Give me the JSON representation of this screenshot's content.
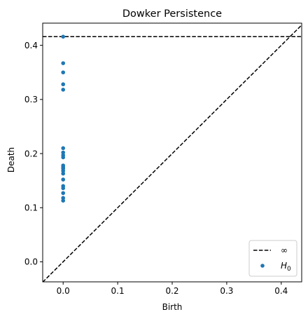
{
  "chart_data": {
    "type": "scatter",
    "title": "Dowker Persistence",
    "xlabel": "Birth",
    "ylabel": "Death",
    "xlim": [
      -0.0375,
      0.4375
    ],
    "ylim": [
      -0.037,
      0.441
    ],
    "x_ticks": [
      0.0,
      0.1,
      0.2,
      0.3,
      0.4
    ],
    "x_tick_labels": [
      "0.0",
      "0.1",
      "0.2",
      "0.3",
      "0.4"
    ],
    "y_ticks": [
      0.0,
      0.1,
      0.2,
      0.3,
      0.4
    ],
    "y_tick_labels": [
      "0.0",
      "0.1",
      "0.2",
      "0.3",
      "0.4"
    ],
    "grid": false,
    "legend_position": "lower-right",
    "infinity_level": 0.416,
    "colors": {
      "points": "#1f77b4",
      "lines": "#000000"
    },
    "legend": [
      {
        "label": "∞",
        "marker": "dashed-line"
      },
      {
        "label_base": "H",
        "label_sub": "0",
        "marker": "dot"
      }
    ],
    "series": [
      {
        "legend_index": 1,
        "points": [
          [
            0.0,
            0.416
          ],
          [
            0.0,
            0.367
          ],
          [
            0.0,
            0.35
          ],
          [
            0.0,
            0.328
          ],
          [
            0.0,
            0.318
          ],
          [
            0.0,
            0.21
          ],
          [
            0.0,
            0.202
          ],
          [
            0.0,
            0.197
          ],
          [
            0.0,
            0.193
          ],
          [
            0.0,
            0.178
          ],
          [
            0.0,
            0.175
          ],
          [
            0.0,
            0.172
          ],
          [
            0.0,
            0.168
          ],
          [
            0.0,
            0.163
          ],
          [
            0.0,
            0.152
          ],
          [
            0.0,
            0.14
          ],
          [
            0.0,
            0.136
          ],
          [
            0.0,
            0.127
          ],
          [
            0.0,
            0.118
          ],
          [
            0.0,
            0.113
          ]
        ]
      }
    ]
  }
}
